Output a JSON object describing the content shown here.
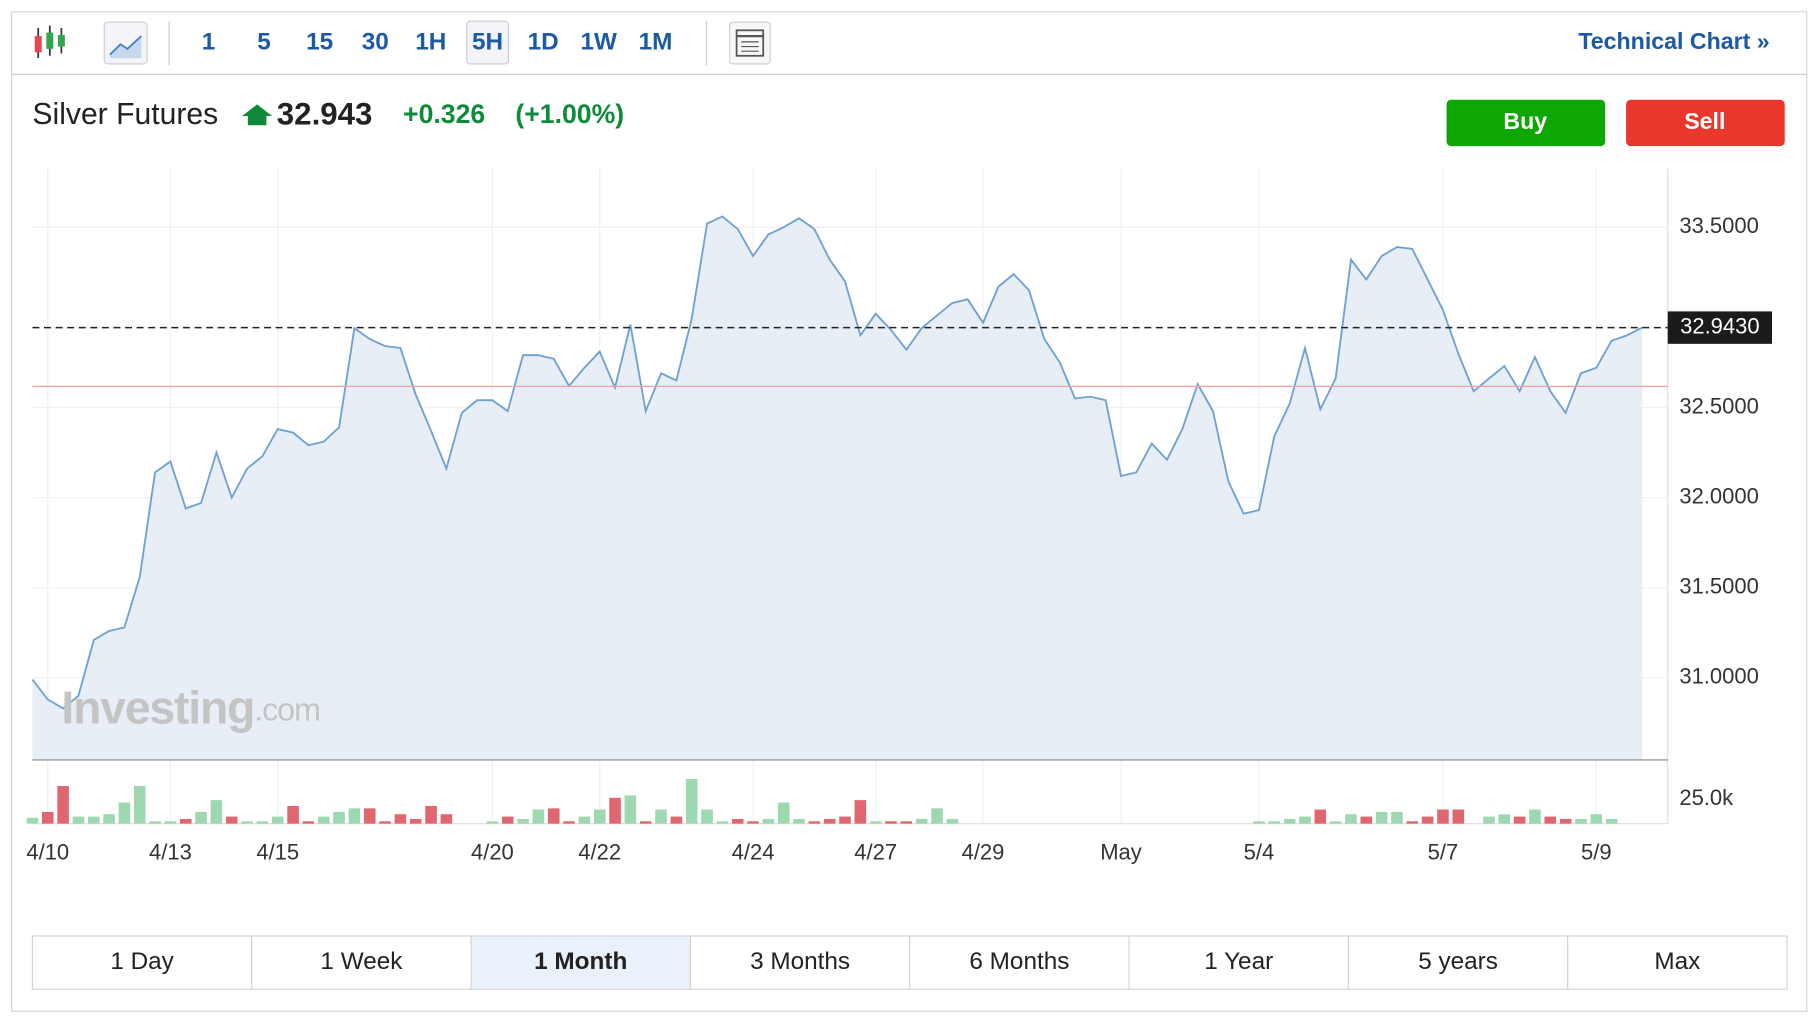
{
  "toolbar": {
    "intervals": [
      "1",
      "5",
      "15",
      "30",
      "1H",
      "5H",
      "1D",
      "1W",
      "1M"
    ],
    "active_interval": "5H",
    "technical_chart": "Technical Chart »"
  },
  "quote": {
    "name": "Silver Futures",
    "price": "32.943",
    "change": "+0.326",
    "change_percent": "(+1.00%)"
  },
  "buttons": {
    "buy": "Buy",
    "sell": "Sell"
  },
  "watermark": {
    "brand": "Investing",
    "suffix": ".com"
  },
  "chart_data": {
    "type": "area",
    "color": "#6fa1d2",
    "fill": "#e3ebf5",
    "grid": true,
    "values": [
      30.99,
      30.88,
      30.83,
      30.9,
      31.21,
      31.26,
      31.28,
      31.56,
      32.14,
      32.2,
      31.94,
      31.97,
      32.25,
      32.0,
      32.16,
      32.23,
      32.38,
      32.36,
      32.29,
      32.31,
      32.39,
      32.94,
      32.88,
      32.84,
      32.83,
      32.57,
      32.37,
      32.16,
      32.47,
      32.54,
      32.54,
      32.48,
      32.79,
      32.79,
      32.77,
      32.62,
      32.72,
      32.81,
      32.61,
      32.96,
      32.48,
      32.69,
      32.65,
      32.99,
      33.52,
      33.56,
      33.49,
      33.34,
      33.46,
      33.5,
      33.55,
      33.49,
      33.32,
      33.2,
      32.9,
      33.02,
      32.93,
      32.82,
      32.94,
      33.01,
      33.08,
      33.1,
      32.97,
      33.17,
      33.24,
      33.15,
      32.88,
      32.75,
      32.55,
      32.56,
      32.54,
      32.12,
      32.14,
      32.3,
      32.21,
      32.38,
      32.63,
      32.48,
      32.09,
      31.91,
      31.93,
      32.34,
      32.52,
      32.83,
      32.49,
      32.66,
      33.32,
      33.21,
      33.34,
      33.39,
      33.38,
      33.21,
      33.04,
      32.8,
      32.59,
      32.66,
      32.73,
      32.59,
      32.78,
      32.59,
      32.47,
      32.69,
      32.72,
      32.87,
      32.9,
      32.943
    ],
    "xlim": [
      0,
      105
    ],
    "xticks": [
      {
        "value": 1,
        "label": "4/10"
      },
      {
        "value": 9,
        "label": "4/13"
      },
      {
        "value": 16,
        "label": "4/15"
      },
      {
        "value": 30,
        "label": "4/20"
      },
      {
        "value": 37,
        "label": "4/22"
      },
      {
        "value": 47,
        "label": "4/24"
      },
      {
        "value": 55,
        "label": "4/27"
      },
      {
        "value": 62,
        "label": "4/29"
      },
      {
        "value": 71,
        "label": "May"
      },
      {
        "value": 80,
        "label": "5/4"
      },
      {
        "value": 92,
        "label": "5/7"
      },
      {
        "value": 102,
        "label": "5/9"
      }
    ],
    "ylim": [
      30.544,
      33.828
    ],
    "yticks": [
      {
        "value": 31,
        "label": "31.0000"
      },
      {
        "value": 31.5,
        "label": "31.5000"
      },
      {
        "value": 32,
        "label": "32.0000"
      },
      {
        "value": 32.5,
        "label": "32.5000"
      },
      {
        "value": 33.5,
        "label": "33.5000"
      }
    ],
    "last_price": {
      "value": 32.943,
      "label": "32.9430"
    },
    "reference_line": {
      "value": 32.617,
      "color": "#f4a0a0"
    },
    "volume": {
      "up_color": "#9ed8b0",
      "down_color": "#e06670",
      "ylim": [
        0,
        65000
      ],
      "yticks": [
        {
          "value": 25000,
          "label": "25.0k"
        }
      ],
      "values": [
        6000,
        12000,
        38400,
        7200,
        7200,
        9600,
        21600,
        38400,
        2400,
        2400,
        4800,
        12000,
        24000,
        7200,
        2400,
        2400,
        7200,
        18000,
        2400,
        7200,
        12000,
        15600,
        15600,
        2400,
        9600,
        4800,
        18000,
        9600,
        null,
        null,
        2400,
        7200,
        4800,
        14400,
        15600,
        2400,
        7200,
        14400,
        26400,
        28800,
        2400,
        14400,
        7200,
        45600,
        14400,
        2400,
        4800,
        2400,
        4800,
        21600,
        4800,
        2400,
        4800,
        7200,
        24000,
        2400,
        2400,
        2400,
        4800,
        15600,
        4800,
        null,
        null,
        null,
        null,
        null,
        null,
        null,
        null,
        null,
        null,
        null,
        null,
        null,
        null,
        null,
        null,
        null,
        null,
        null,
        2400,
        2400,
        4800,
        7200,
        14400,
        2400,
        9600,
        7200,
        12000,
        12000,
        2400,
        7200,
        14400,
        14400,
        null,
        7200,
        9600,
        7200,
        14400,
        7200,
        4800,
        4800,
        9600,
        4800,
        null,
        null
      ]
    }
  },
  "ranges": [
    "1 Day",
    "1 Week",
    "1 Month",
    "3 Months",
    "6 Months",
    "1 Year",
    "5 years",
    "Max"
  ],
  "active_range": "1 Month"
}
